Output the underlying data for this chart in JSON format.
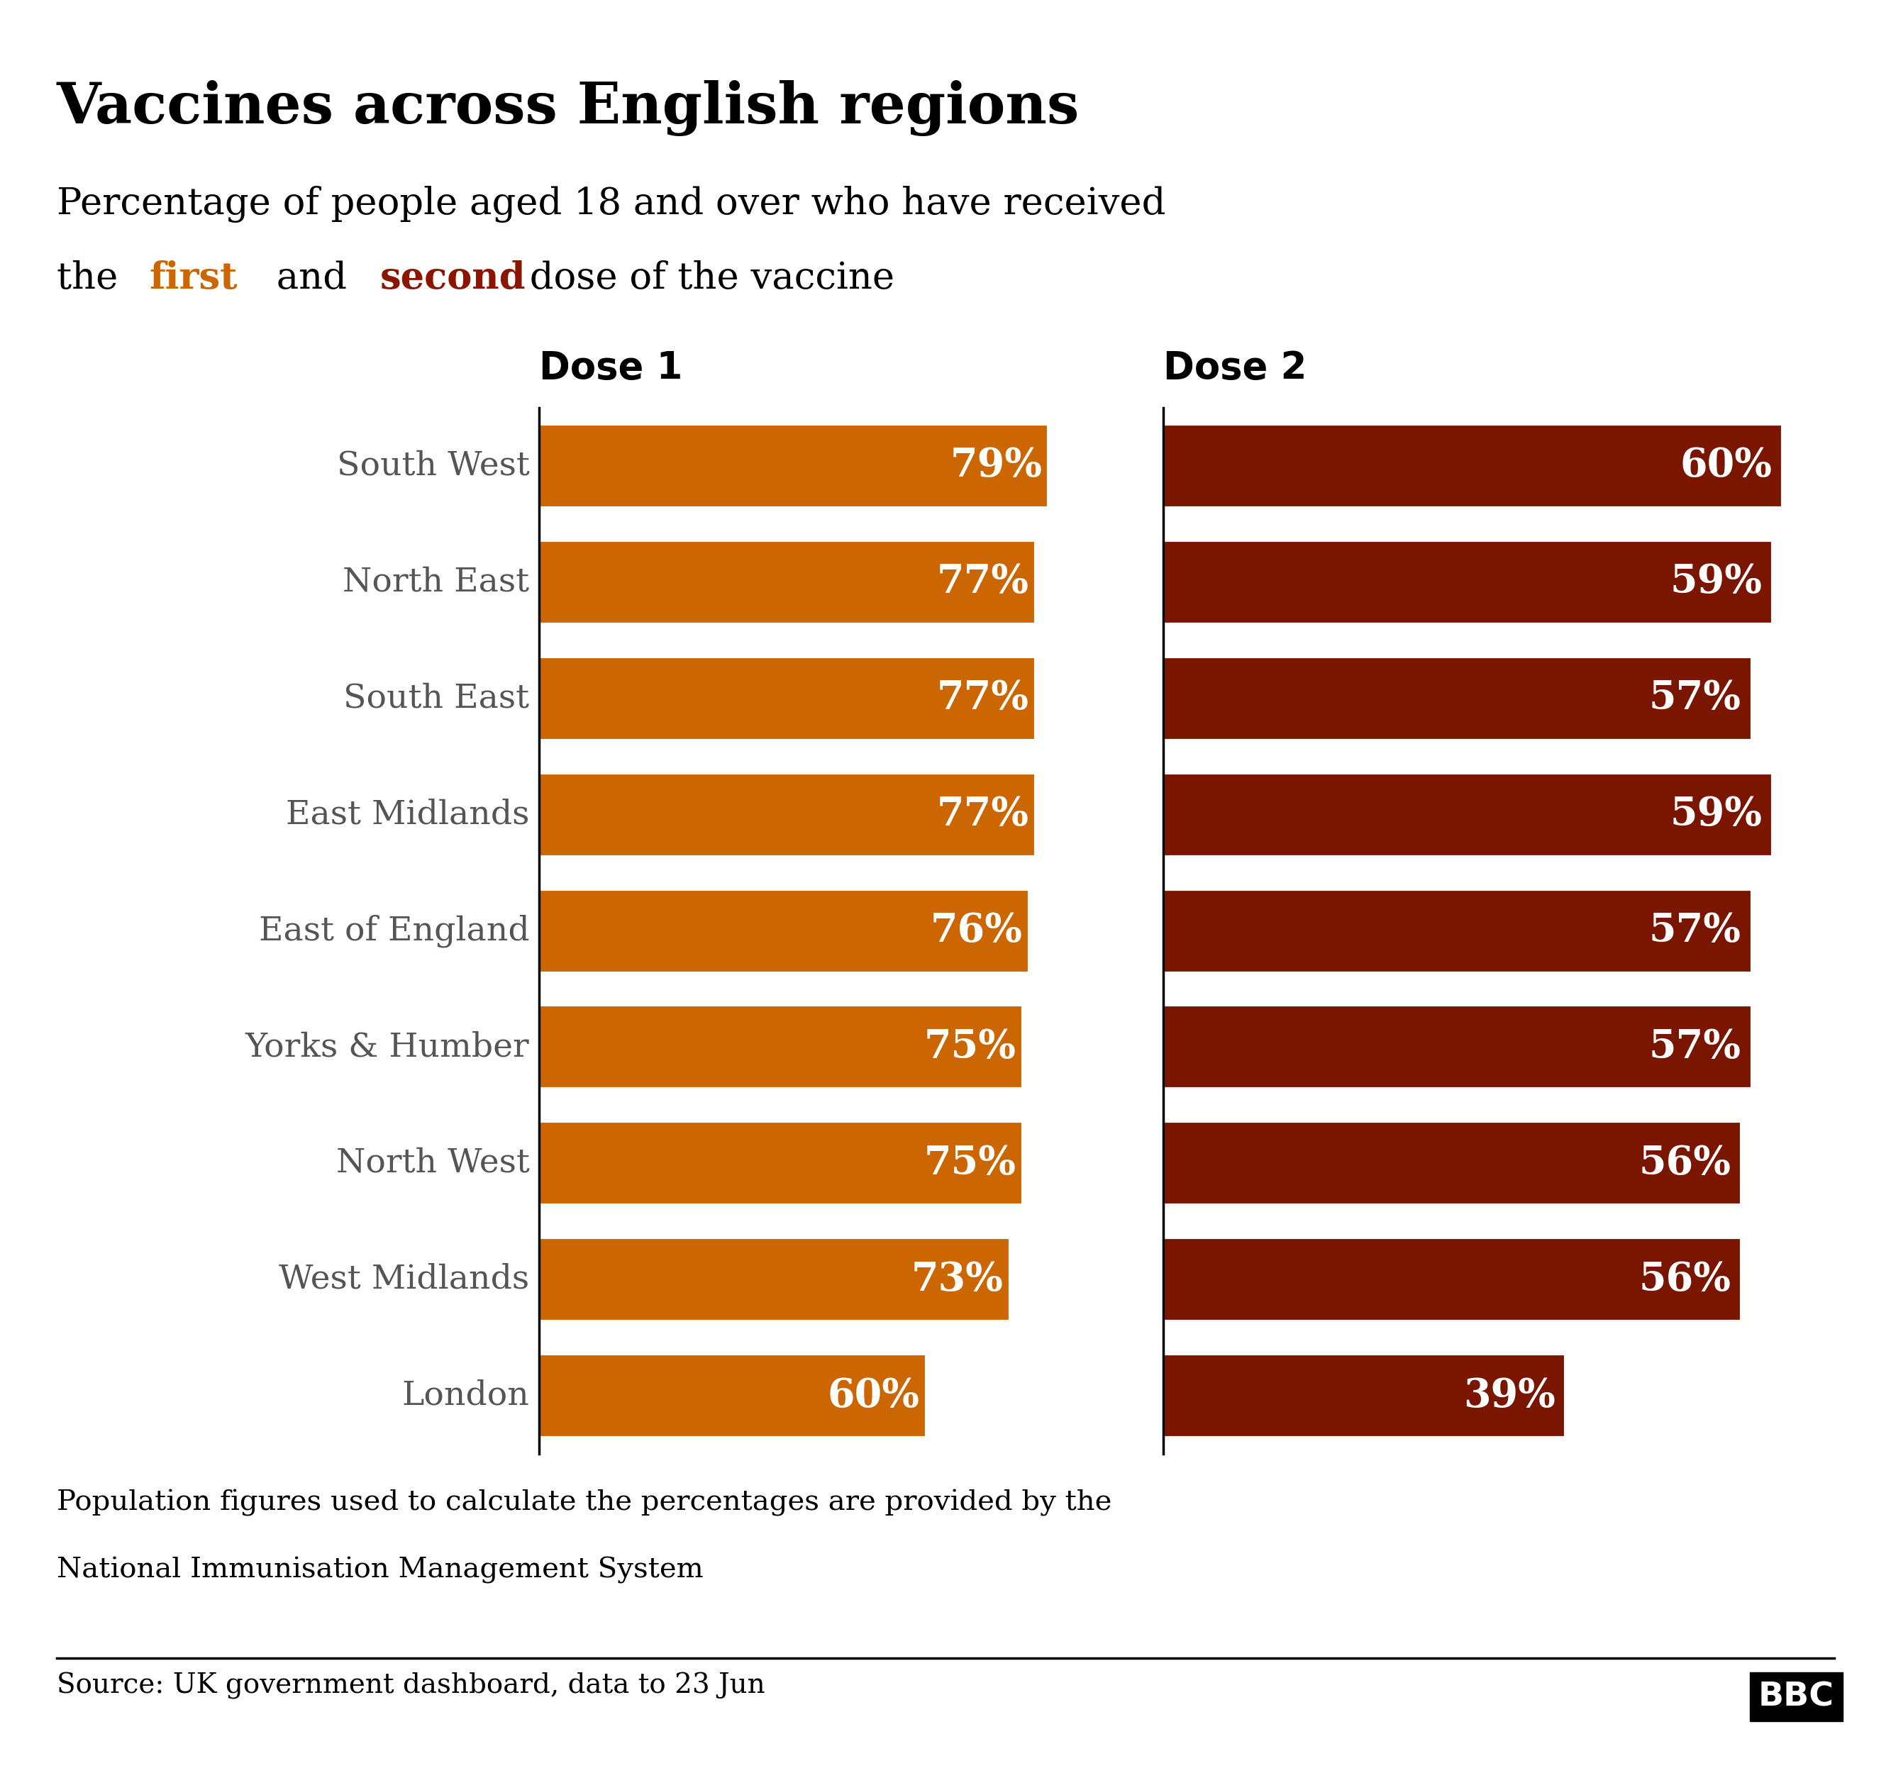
{
  "title": "Vaccines across English regions",
  "subtitle_line1": "Percentage of people aged 18 and over who have received",
  "subtitle_line2_parts": [
    {
      "text": "the ",
      "color": "#000000",
      "bold": false
    },
    {
      "text": "first",
      "color": "#cc6600",
      "bold": true
    },
    {
      "text": " and ",
      "color": "#000000",
      "bold": false
    },
    {
      "text": "second",
      "color": "#8b1500",
      "bold": true
    },
    {
      "text": " dose of the vaccine",
      "color": "#000000",
      "bold": false
    }
  ],
  "regions": [
    "South West",
    "North East",
    "South East",
    "East Midlands",
    "East of England",
    "Yorks & Humber",
    "North West",
    "West Midlands",
    "London"
  ],
  "dose1_values": [
    79,
    77,
    77,
    77,
    76,
    75,
    75,
    73,
    60
  ],
  "dose2_values": [
    60,
    59,
    57,
    59,
    57,
    57,
    56,
    56,
    39
  ],
  "dose1_color": "#cc6600",
  "dose2_color": "#7a1500",
  "dose1_label": "Dose 1",
  "dose2_label": "Dose 2",
  "bar_text_color": "#ffffff",
  "label_color": "#555555",
  "footnote_line1": "Population figures used to calculate the percentages are provided by the",
  "footnote_line2": "National Immunisation Management System",
  "source": "Source: UK government dashboard, data to 23 Jun",
  "background_color": "#ffffff",
  "title_fontsize": 58,
  "subtitle_fontsize": 38,
  "dose_label_fontsize": 38,
  "bar_label_fontsize": 40,
  "region_label_fontsize": 34,
  "footnote_fontsize": 29,
  "source_fontsize": 28,
  "dose1_xlim": 85,
  "dose2_xlim": 65
}
